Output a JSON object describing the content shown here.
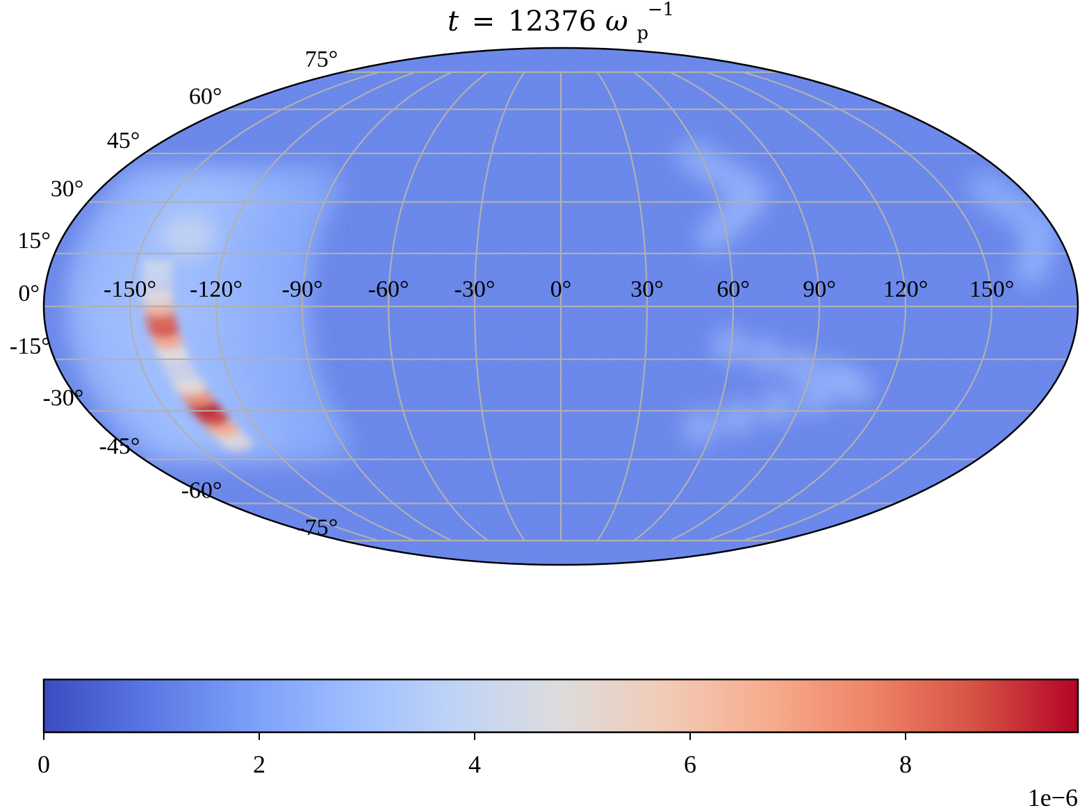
{
  "chart_data": {
    "type": "heatmap",
    "projection": "mollweide",
    "title": {
      "t_symbol": "t",
      "equals": "=",
      "value": "12376",
      "omega": "ω",
      "subscript": "p",
      "superscript": "−1"
    },
    "longitude_labels": [
      "-150°",
      "-120°",
      "-90°",
      "-60°",
      "-30°",
      "0°",
      "30°",
      "60°",
      "90°",
      "120°",
      "150°"
    ],
    "longitudes": [
      -150,
      -120,
      -90,
      -60,
      -30,
      0,
      30,
      60,
      90,
      120,
      150
    ],
    "latitude_labels": [
      "75°",
      "60°",
      "45°",
      "30°",
      "15°",
      "0°",
      "-15°",
      "-30°",
      "-45°",
      "-60°",
      "-75°"
    ],
    "latitudes": [
      75,
      60,
      45,
      30,
      15,
      0,
      -15,
      -30,
      -45,
      -60,
      -75
    ],
    "grid": true,
    "colormap": "coolwarm",
    "colorbar": {
      "orientation": "horizontal",
      "range": [
        0,
        9.6
      ],
      "ticks": [
        0,
        2,
        4,
        6,
        8
      ],
      "tick_labels": [
        "0",
        "2",
        "4",
        "6",
        "8"
      ],
      "scale_label": "1e−6"
    },
    "background_level": 1.2,
    "features": [
      {
        "kind": "hot-band",
        "lon": -140,
        "lat_range": [
          -40,
          15
        ],
        "peak": 9.6
      },
      {
        "kind": "warm-patch",
        "lon": -135,
        "lat": 20,
        "peak": 4.2
      },
      {
        "kind": "faint-arc",
        "lon_range": [
          55,
          110
        ],
        "lat_range": [
          -35,
          -10
        ],
        "peak": 2.8
      },
      {
        "kind": "faint-arc",
        "lon_range": [
          55,
          75
        ],
        "lat_range": [
          20,
          45
        ],
        "peak": 2.4
      },
      {
        "kind": "faint-arc",
        "lon": 170,
        "lat_range": [
          10,
          35
        ],
        "peak": 2.3
      }
    ]
  },
  "colors": {
    "grid": "#b0b0b0",
    "frame": "#000000",
    "cmap_stops": [
      "#3b4cc0",
      "#5977e3",
      "#7b9ff9",
      "#9ebeff",
      "#c0d4f5",
      "#dddcdc",
      "#f2cbb7",
      "#f7ac8e",
      "#ee8468",
      "#d65244",
      "#b40426"
    ]
  }
}
